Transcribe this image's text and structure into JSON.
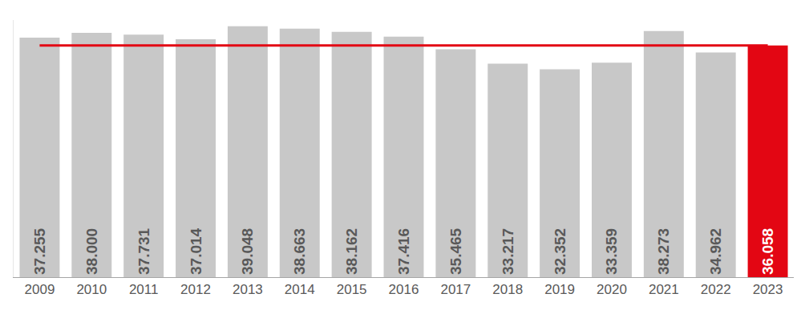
{
  "chart_data": {
    "type": "bar",
    "categories": [
      "2009",
      "2010",
      "2011",
      "2012",
      "2013",
      "2014",
      "2015",
      "2016",
      "2017",
      "2018",
      "2019",
      "2020",
      "2021",
      "2022",
      "2023"
    ],
    "values": [
      37255,
      38000,
      37731,
      37014,
      39048,
      38663,
      38162,
      37416,
      35465,
      33217,
      32352,
      33359,
      38273,
      34962,
      36058
    ],
    "value_labels": [
      "37.255",
      "38.000",
      "37.731",
      "37.014",
      "39.048",
      "38.663",
      "38.162",
      "37.416",
      "35.465",
      "33.217",
      "32.352",
      "33.359",
      "38.273",
      "34.962",
      "36.058"
    ],
    "colors": [
      "#c8c8c8",
      "#c8c8c8",
      "#c8c8c8",
      "#c8c8c8",
      "#c8c8c8",
      "#c8c8c8",
      "#c8c8c8",
      "#c8c8c8",
      "#c8c8c8",
      "#c8c8c8",
      "#c8c8c8",
      "#c8c8c8",
      "#c8c8c8",
      "#c8c8c8",
      "#e30613"
    ],
    "ylim": [
      0,
      40000
    ],
    "data_labels": true,
    "tick_labels": "x",
    "grid": false
  }
}
